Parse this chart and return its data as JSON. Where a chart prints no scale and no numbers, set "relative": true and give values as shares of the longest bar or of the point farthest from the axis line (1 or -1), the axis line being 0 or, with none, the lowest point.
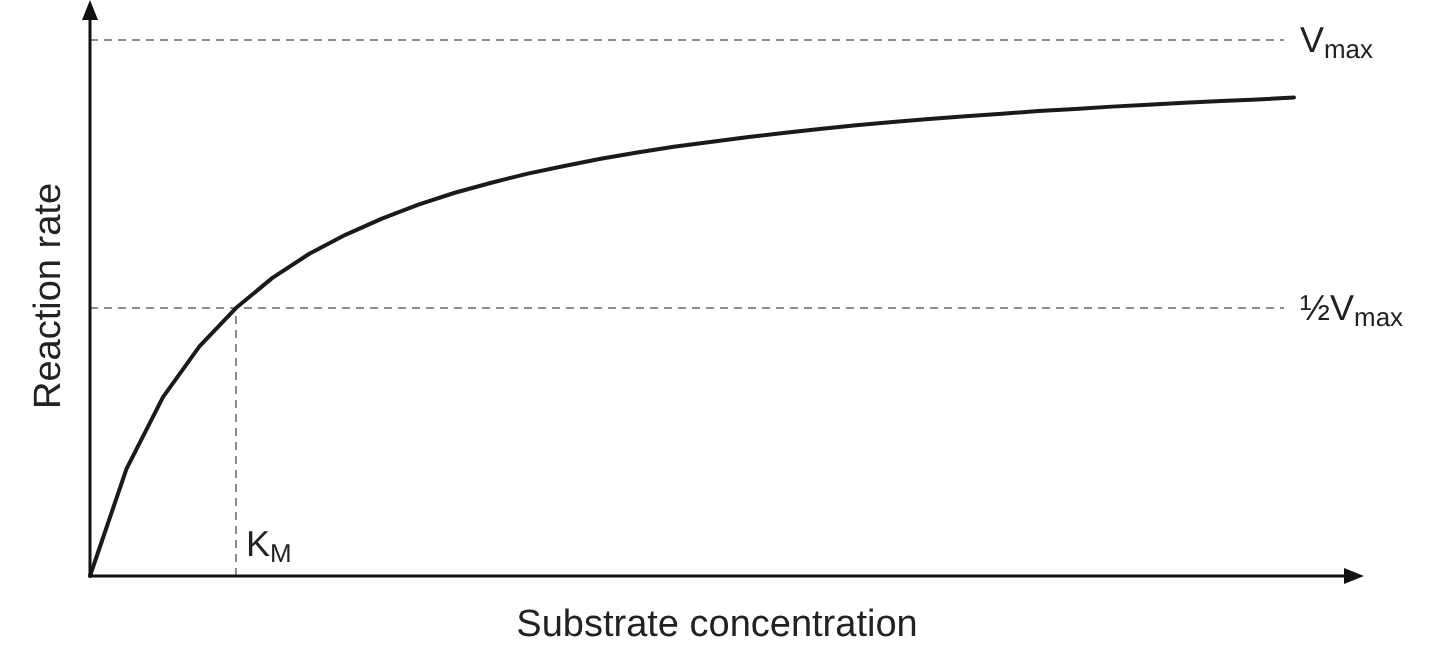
{
  "chart_data": {
    "type": "line",
    "relative": true,
    "xlabel": "Substrate concentration",
    "ylabel": "Reaction rate",
    "marker": "none",
    "line_style": "solid",
    "categories": [
      null,
      null,
      null,
      null,
      null,
      null,
      null,
      null,
      null,
      null,
      null,
      null,
      null,
      null,
      null,
      null,
      null,
      null,
      null,
      null,
      null,
      null,
      null,
      null,
      null,
      null,
      null,
      null,
      null,
      null,
      null,
      null,
      null,
      null
    ],
    "series": [
      {
        "color": "#1a1a1a",
        "values": [
          0,
          0.224,
          0.374,
          0.48,
          0.56,
          0.623,
          0.673,
          0.713,
          0.747,
          0.776,
          0.801,
          0.822,
          0.841,
          0.857,
          0.872,
          0.885,
          0.897,
          0.907,
          0.917,
          0.926,
          0.934,
          0.942,
          0.949,
          0.955,
          0.961,
          0.966,
          0.972,
          0.976,
          0.981,
          0.985,
          0.989,
          0.993,
          0.996,
          1
        ]
      }
    ],
    "ref_lines": [
      {
        "axis": "y",
        "value": 1.12,
        "label": "V$_{max}$",
        "color": "#8c8c8c",
        "line_style": "dashed"
      },
      {
        "axis": "y",
        "value": 0.56,
        "label": "½V$_{max}$",
        "color": "#8c8c8c",
        "line_style": "dashed"
      }
    ],
    "annotations": [
      "K$_{M}$"
    ]
  }
}
